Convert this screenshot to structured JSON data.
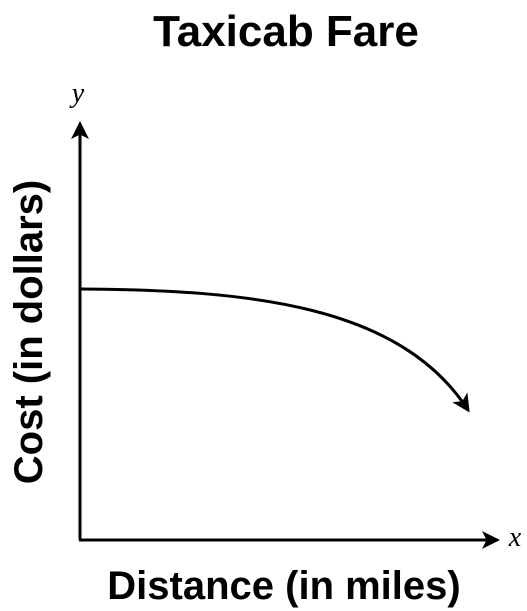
{
  "title": "Taxicab Fare",
  "y_axis": {
    "letter": "y",
    "label": "Cost (in dollars)"
  },
  "x_axis": {
    "letter": "x",
    "label": "Distance (in miles)"
  }
}
